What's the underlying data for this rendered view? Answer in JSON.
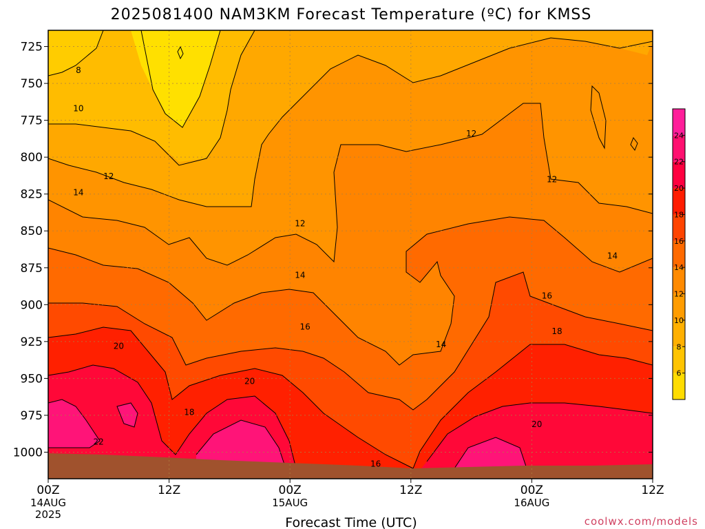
{
  "chart_data": {
    "type": "heatmap",
    "title": "2025081400 NAM3KM Forecast Temperature (ºC) for KMSS",
    "xlabel": "Forecast Time (UTC)",
    "ylabel": "",
    "x_ticks": [
      "00Z",
      "12Z",
      "00Z",
      "12Z",
      "00Z",
      "12Z"
    ],
    "x_tick_hours": [
      0,
      12,
      24,
      36,
      48,
      60
    ],
    "x_date_labels": [
      {
        "hour": 0,
        "lines": [
          "14AUG",
          "2025"
        ]
      },
      {
        "hour": 24,
        "lines": [
          "15AUG"
        ]
      },
      {
        "hour": 48,
        "lines": [
          "16AUG"
        ]
      }
    ],
    "xlim": [
      0,
      60
    ],
    "y_ticks": [
      725,
      750,
      775,
      800,
      825,
      850,
      875,
      900,
      925,
      950,
      975,
      1000
    ],
    "ylim": [
      1018,
      714
    ],
    "contour_levels": [
      8,
      10,
      12,
      14,
      16,
      18,
      20,
      22
    ],
    "colorbar": {
      "labels": [
        6,
        8,
        10,
        12,
        14,
        16,
        18,
        20,
        22,
        24
      ],
      "colors": [
        "#ffdc00",
        "#ffc400",
        "#ffb000",
        "#ff9c00",
        "#ff8a00",
        "#ff6a00",
        "#ff4400",
        "#ff1c00",
        "#ff0040",
        "#ff1070",
        "#ff1e9a"
      ]
    },
    "contour_labels": [
      {
        "text": "8",
        "hour": 3,
        "p": 741
      },
      {
        "text": "10",
        "hour": 3,
        "p": 767
      },
      {
        "text": "12",
        "hour": 6,
        "p": 813
      },
      {
        "text": "14",
        "hour": 3,
        "p": 824
      },
      {
        "text": "12",
        "hour": 25,
        "p": 845
      },
      {
        "text": "14",
        "hour": 25,
        "p": 880
      },
      {
        "text": "16",
        "hour": 25.5,
        "p": 915
      },
      {
        "text": "20",
        "hour": 7,
        "p": 928
      },
      {
        "text": "20",
        "hour": 20,
        "p": 952
      },
      {
        "text": "18",
        "hour": 14,
        "p": 973
      },
      {
        "text": "22",
        "hour": 5,
        "p": 993
      },
      {
        "text": "14",
        "hour": 39,
        "p": 927
      },
      {
        "text": "12",
        "hour": 42,
        "p": 784
      },
      {
        "text": "12",
        "hour": 50,
        "p": 815
      },
      {
        "text": "16",
        "hour": 49.5,
        "p": 894
      },
      {
        "text": "18",
        "hour": 50.5,
        "p": 918
      },
      {
        "text": "20",
        "hour": 48.5,
        "p": 981
      },
      {
        "text": "14",
        "hour": 56,
        "p": 867
      },
      {
        "text": "16",
        "hour": 32.5,
        "p": 1008
      }
    ]
  },
  "credit": "coolwx.com/models"
}
